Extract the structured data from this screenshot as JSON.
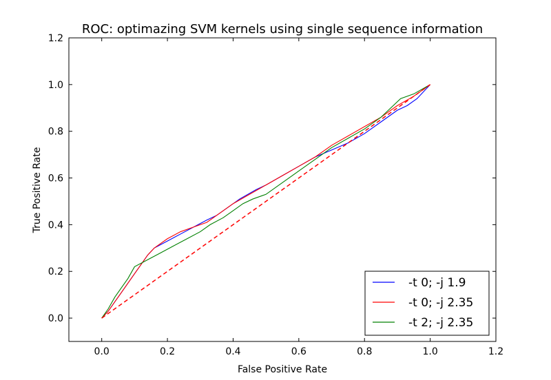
{
  "chart_data": {
    "type": "line",
    "title": "ROC: optimazing SVM kernels using single sequence information",
    "xlabel": "False Positive Rate",
    "ylabel": "True Positive Rate",
    "xlim": [
      -0.1,
      1.2
    ],
    "ylim": [
      -0.1,
      1.2
    ],
    "xticks": [
      0.0,
      0.2,
      0.4,
      0.6,
      0.8,
      1.0,
      1.2
    ],
    "xtick_labels": [
      "0.0",
      "0.2",
      "0.4",
      "0.6",
      "0.8",
      "1.0",
      "1.2"
    ],
    "yticks": [
      0.0,
      0.2,
      0.4,
      0.6,
      0.8,
      1.0,
      1.2
    ],
    "ytick_labels": [
      "0.0",
      "0.2",
      "0.4",
      "0.6",
      "0.8",
      "1.0",
      "1.2"
    ],
    "grid": false,
    "legend_position": "bottom-right",
    "series": [
      {
        "name": "-t 0; -j 1.9",
        "color": "#0000ff",
        "style": "solid",
        "x": [
          0.0,
          0.02,
          0.04,
          0.06,
          0.08,
          0.1,
          0.12,
          0.14,
          0.16,
          0.2,
          0.24,
          0.28,
          0.32,
          0.35,
          0.38,
          0.42,
          0.47,
          0.5,
          0.55,
          0.6,
          0.65,
          0.7,
          0.75,
          0.8,
          0.85,
          0.9,
          0.93,
          0.96,
          1.0
        ],
        "y": [
          0.0,
          0.03,
          0.07,
          0.11,
          0.15,
          0.19,
          0.23,
          0.27,
          0.3,
          0.33,
          0.36,
          0.39,
          0.42,
          0.44,
          0.47,
          0.51,
          0.55,
          0.57,
          0.61,
          0.65,
          0.69,
          0.72,
          0.75,
          0.79,
          0.84,
          0.89,
          0.91,
          0.94,
          1.0
        ]
      },
      {
        "name": "-t 0; -j 2.35",
        "color": "#ff0000",
        "style": "solid",
        "x": [
          0.0,
          0.02,
          0.04,
          0.06,
          0.08,
          0.1,
          0.12,
          0.14,
          0.16,
          0.2,
          0.24,
          0.28,
          0.32,
          0.36,
          0.4,
          0.45,
          0.5,
          0.55,
          0.6,
          0.65,
          0.7,
          0.75,
          0.8,
          0.85,
          0.9,
          0.95,
          1.0
        ],
        "y": [
          0.0,
          0.03,
          0.07,
          0.11,
          0.15,
          0.19,
          0.23,
          0.27,
          0.3,
          0.34,
          0.37,
          0.39,
          0.41,
          0.45,
          0.49,
          0.53,
          0.57,
          0.61,
          0.65,
          0.69,
          0.74,
          0.78,
          0.82,
          0.86,
          0.91,
          0.95,
          1.0
        ]
      },
      {
        "name": "-t 2; -j 2.35",
        "color": "#008000",
        "style": "solid",
        "x": [
          0.0,
          0.02,
          0.04,
          0.06,
          0.08,
          0.1,
          0.14,
          0.18,
          0.22,
          0.26,
          0.3,
          0.33,
          0.37,
          0.4,
          0.43,
          0.46,
          0.5,
          0.55,
          0.6,
          0.65,
          0.7,
          0.75,
          0.8,
          0.85,
          0.91,
          0.95,
          1.0
        ],
        "y": [
          0.0,
          0.04,
          0.09,
          0.13,
          0.17,
          0.22,
          0.25,
          0.28,
          0.31,
          0.34,
          0.37,
          0.4,
          0.43,
          0.46,
          0.49,
          0.51,
          0.53,
          0.58,
          0.63,
          0.68,
          0.73,
          0.77,
          0.81,
          0.86,
          0.94,
          0.96,
          1.0
        ]
      },
      {
        "color": "#ff0000",
        "style": "dashed",
        "x": [
          0.0,
          1.0
        ],
        "y": [
          0.0,
          1.0
        ]
      }
    ]
  }
}
